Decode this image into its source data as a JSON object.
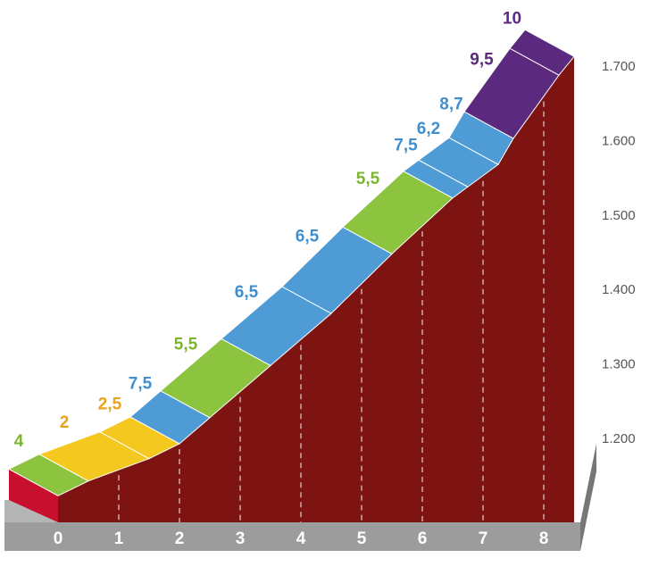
{
  "chart_data": {
    "type": "profile",
    "x": [
      0,
      0.5,
      1.5,
      2,
      2.5,
      3.5,
      4.5,
      5.5,
      6.5,
      6.75,
      7.25,
      7.5,
      8.25,
      8.5
    ],
    "values": [
      1160,
      1180,
      1210,
      1230,
      1265,
      1335,
      1405,
      1485,
      1560,
      1575,
      1605,
      1640,
      1725,
      1750
    ],
    "segments": {
      "values": [
        4,
        2,
        2.5,
        7.5,
        5.5,
        6.5,
        6.5,
        5.5,
        7.5,
        6.2,
        8.7,
        9.5,
        10
      ],
      "value_labels": [
        "4",
        "2",
        "2,5",
        "7,5",
        "5,5",
        "6,5",
        "6,5",
        "5,5",
        "7,5",
        "6,2",
        "8,7",
        "9,5",
        "10"
      ],
      "colors": [
        "#8cc43f",
        "#f4c81e",
        "#f4c81e",
        "#4f9bd6",
        "#8cc43f",
        "#4f9bd6",
        "#4f9bd6",
        "#8cc43f",
        "#4f9bd6",
        "#4f9bd6",
        "#4f9bd6",
        "#5b2a7e",
        "#5b2a7e"
      ],
      "label_colors": [
        "#7cb52f",
        "#e9a21c",
        "#e9a21c",
        "#3f8fcf",
        "#7cb52f",
        "#3f8fcf",
        "#3f8fcf",
        "#7cb52f",
        "#3f8fcf",
        "#3f8fcf",
        "#3f8fcf",
        "#5b2a7e",
        "#5b2a7e"
      ]
    },
    "xlim": [
      0,
      8.5
    ],
    "xticks": [
      0,
      1,
      2,
      3,
      4,
      5,
      6,
      7,
      8
    ],
    "ylim": [
      1200,
      1700
    ],
    "yticks": [
      {
        "value": 1200,
        "label": "1.200"
      },
      {
        "value": 1300,
        "label": "1.300"
      },
      {
        "value": 1400,
        "label": "1.400"
      },
      {
        "value": 1500,
        "label": "1.500"
      },
      {
        "value": 1600,
        "label": "1.600"
      },
      {
        "value": 1700,
        "label": "1.700"
      }
    ]
  }
}
